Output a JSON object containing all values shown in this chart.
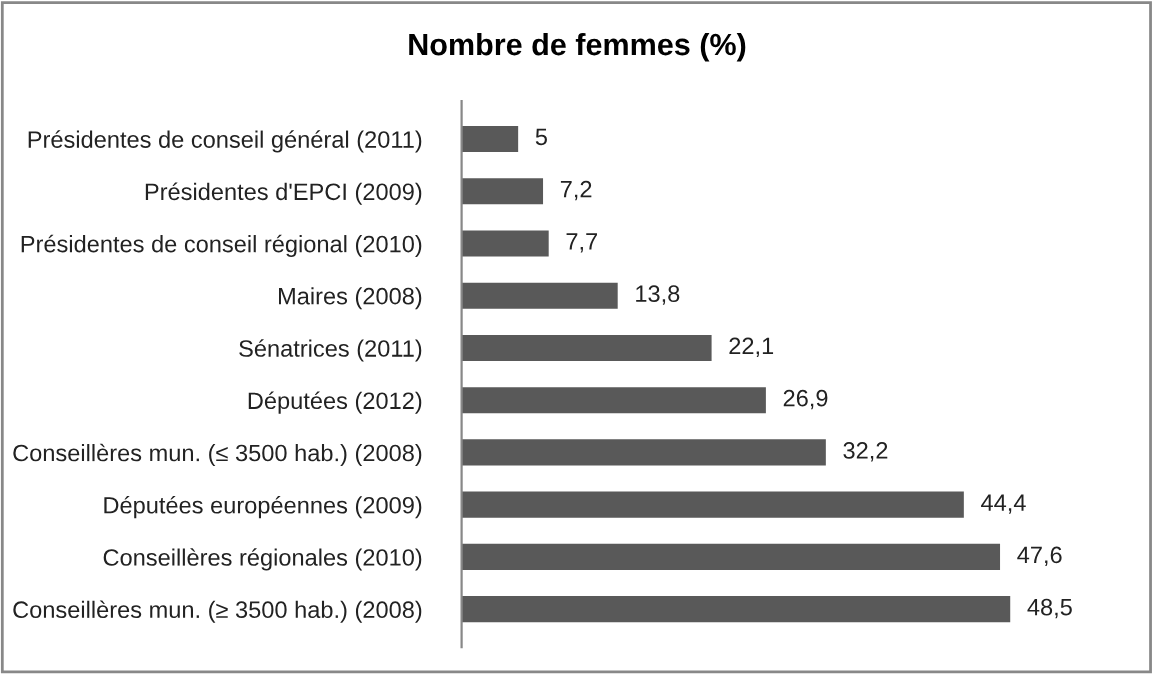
{
  "chart_data": {
    "type": "bar",
    "orientation": "horizontal",
    "title": "Nombre de femmes (%)",
    "categories": [
      "Présidentes de conseil général (2011)",
      "Présidentes d'EPCI (2009)",
      "Présidentes de conseil régional (2010)",
      "Maires (2008)",
      "Sénatrices (2011)",
      "Députées (2012)",
      "Conseillères mun. (≤ 3500 hab.) (2008)",
      "Députées européennes (2009)",
      "Conseillères régionales (2010)",
      "Conseillères mun. (≥ 3500 hab.) (2008)"
    ],
    "values": [
      5,
      7.2,
      7.7,
      13.8,
      22.1,
      26.9,
      32.2,
      44.4,
      47.6,
      48.5
    ],
    "value_labels": [
      "5",
      "7,2",
      "7,7",
      "13,8",
      "22,1",
      "26,9",
      "32,2",
      "44,4",
      "47,6",
      "48,5"
    ],
    "color": "#595959",
    "tick_labels": "y",
    "grid": false,
    "legend": false
  }
}
